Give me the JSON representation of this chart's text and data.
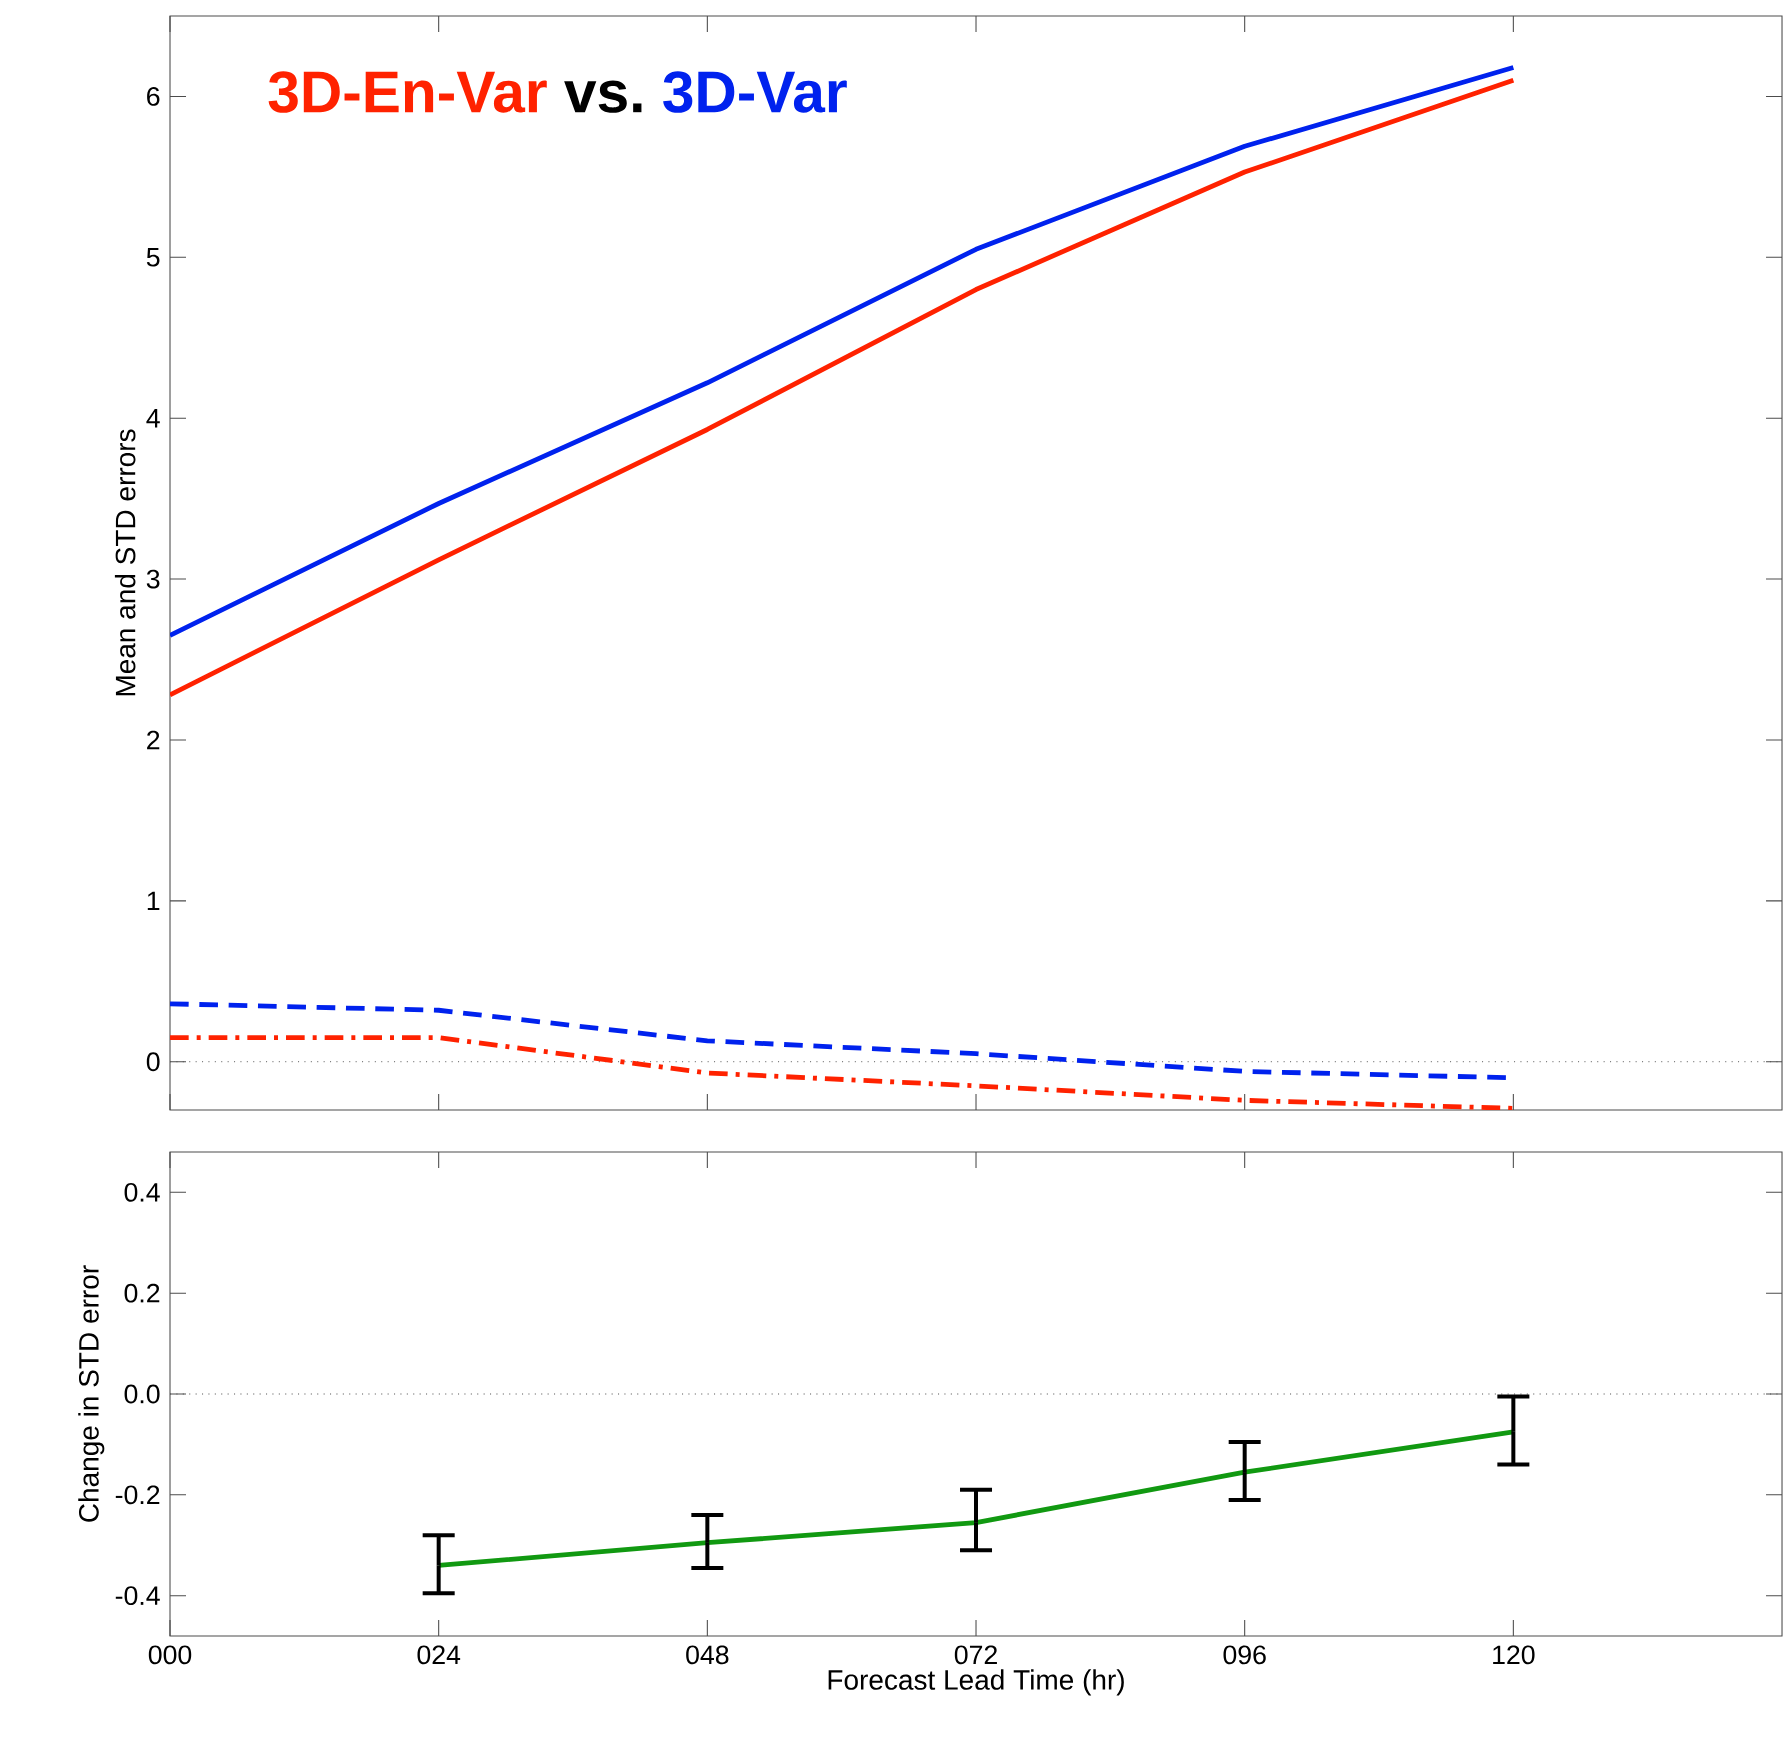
{
  "chart_data": [
    {
      "type": "line",
      "ylabel": "Mean and STD errors",
      "xlim": [
        0,
        144
      ],
      "ylim": [
        -0.3,
        6.5
      ],
      "xticks": [
        {
          "value": 0,
          "label": null
        },
        {
          "value": 24,
          "label": null
        },
        {
          "value": 48,
          "label": null
        },
        {
          "value": 72,
          "label": null
        },
        {
          "value": 96,
          "label": null
        },
        {
          "value": 120,
          "label": null
        }
      ],
      "yticks": [
        0,
        1,
        2,
        3,
        4,
        5,
        6
      ],
      "tick_labels": "y",
      "legend": "top left",
      "annotations": [
        "vs."
      ],
      "x": [
        0,
        24,
        48,
        72,
        96,
        120
      ],
      "series": [
        {
          "name": "3D-En-Var",
          "color": "#ff2200",
          "line_style": "solid",
          "values": [
            2.28,
            3.12,
            3.93,
            4.8,
            5.53,
            6.1
          ]
        },
        {
          "name": "3D-Var",
          "color": "#0022ee",
          "line_style": "solid",
          "values": [
            2.65,
            3.47,
            4.22,
            5.05,
            5.69,
            6.18
          ]
        },
        {
          "color": "#0022ee",
          "line_style": "dashed",
          "values": [
            0.36,
            0.32,
            0.13,
            0.05,
            -0.06,
            -0.1
          ]
        },
        {
          "color": "#ff2200",
          "line_style": "dashdot",
          "values": [
            0.15,
            0.15,
            -0.07,
            -0.15,
            -0.24,
            -0.29
          ]
        }
      ],
      "ref_lines": [
        {
          "axis": "y",
          "value": 0,
          "line_style": "dotted",
          "color": "#555555"
        }
      ]
    },
    {
      "type": "line",
      "xlabel": "Forecast Lead Time (hr)",
      "ylabel": "Change in STD error",
      "xlim": [
        0,
        144
      ],
      "ylim": [
        -0.48,
        0.48
      ],
      "xticks": [
        {
          "value": 0,
          "label": "000"
        },
        {
          "value": 24,
          "label": "024"
        },
        {
          "value": 48,
          "label": "048"
        },
        {
          "value": 72,
          "label": "072"
        },
        {
          "value": 96,
          "label": "096"
        },
        {
          "value": 120,
          "label": "120"
        }
      ],
      "yticks": [
        {
          "value": 0.4,
          "label": "0.4"
        },
        {
          "value": 0.2,
          "label": "0.2"
        },
        {
          "value": 0,
          "label": "0.0"
        },
        {
          "value": -0.2,
          "label": "-0.2"
        },
        {
          "value": -0.4,
          "label": "-0.4"
        }
      ],
      "x": [
        24,
        48,
        72,
        96,
        120
      ],
      "series": [
        {
          "color": "#119911",
          "line_style": "solid",
          "values": [
            -0.34,
            -0.295,
            -0.255,
            -0.155,
            -0.075
          ],
          "errors": [
            [
              -0.395,
              -0.28
            ],
            [
              -0.345,
              -0.24
            ],
            [
              -0.31,
              -0.19
            ],
            [
              -0.21,
              -0.095
            ],
            [
              -0.14,
              -0.005
            ]
          ]
        }
      ],
      "ref_lines": [
        {
          "axis": "y",
          "value": 0,
          "line_style": "dotted",
          "color": "#555555"
        }
      ]
    }
  ]
}
